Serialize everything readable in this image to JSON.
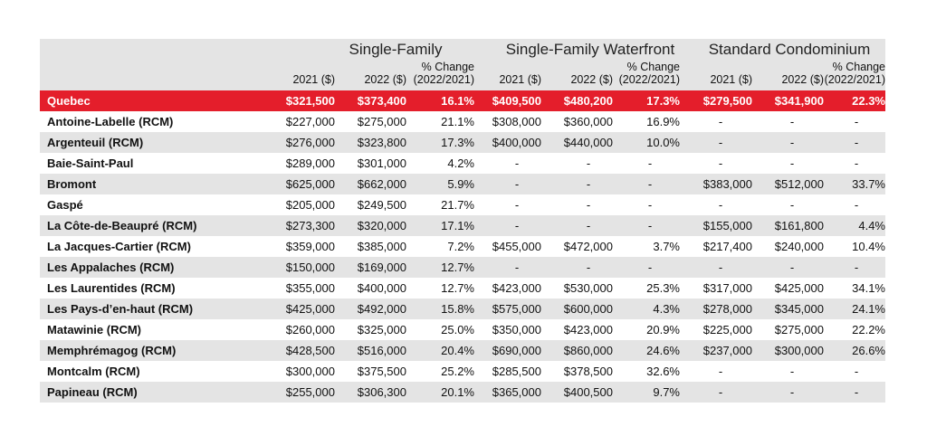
{
  "groups": [
    "Single-Family",
    "Single-Family Waterfront",
    "Standard Condominium"
  ],
  "subheaders": {
    "y2021": "2021 ($)",
    "y2022": "2022 ($)",
    "change_l1": "% Change",
    "change_l2": "(2022/2021)"
  },
  "rows": [
    {
      "name": "Quebec",
      "cells": [
        "$321,500",
        "$373,400",
        "16.1%",
        "$409,500",
        "$480,200",
        "17.3%",
        "$279,500",
        "$341,900",
        "22.3%"
      ]
    },
    {
      "name": "Antoine-Labelle (RCM)",
      "cells": [
        "$227,000",
        "$275,000",
        "21.1%",
        "$308,000",
        "$360,000",
        "16.9%",
        "-",
        "-",
        "-"
      ]
    },
    {
      "name": "Argenteuil (RCM)",
      "cells": [
        "$276,000",
        "$323,800",
        "17.3%",
        "$400,000",
        "$440,000",
        "10.0%",
        "-",
        "-",
        "-"
      ]
    },
    {
      "name": "Baie-Saint-Paul",
      "cells": [
        "$289,000",
        "$301,000",
        "4.2%",
        "-",
        "-",
        "-",
        "-",
        "-",
        "-"
      ]
    },
    {
      "name": "Bromont",
      "cells": [
        "$625,000",
        "$662,000",
        "5.9%",
        "-",
        "-",
        "-",
        "$383,000",
        "$512,000",
        "33.7%"
      ]
    },
    {
      "name": "Gaspé",
      "cells": [
        "$205,000",
        "$249,500",
        "21.7%",
        "-",
        "-",
        "-",
        "-",
        "-",
        "-"
      ]
    },
    {
      "name": "La Côte-de-Beaupré (RCM)",
      "cells": [
        "$273,300",
        "$320,000",
        "17.1%",
        "-",
        "-",
        "-",
        "$155,000",
        "$161,800",
        "4.4%"
      ]
    },
    {
      "name": "La Jacques-Cartier (RCM)",
      "cells": [
        "$359,000",
        "$385,000",
        "7.2%",
        "$455,000",
        "$472,000",
        "3.7%",
        "$217,400",
        "$240,000",
        "10.4%"
      ]
    },
    {
      "name": "Les Appalaches (RCM)",
      "cells": [
        "$150,000",
        "$169,000",
        "12.7%",
        "-",
        "-",
        "-",
        "-",
        "-",
        "-"
      ]
    },
    {
      "name": "Les Laurentides (RCM)",
      "cells": [
        "$355,000",
        "$400,000",
        "12.7%",
        "$423,000",
        "$530,000",
        "25.3%",
        "$317,000",
        "$425,000",
        "34.1%"
      ]
    },
    {
      "name": "Les Pays-d’en-haut (RCM)",
      "cells": [
        "$425,000",
        "$492,000",
        "15.8%",
        "$575,000",
        "$600,000",
        "4.3%",
        "$278,000",
        "$345,000",
        "24.1%"
      ]
    },
    {
      "name": "Matawinie (RCM)",
      "cells": [
        "$260,000",
        "$325,000",
        "25.0%",
        "$350,000",
        "$423,000",
        "20.9%",
        "$225,000",
        "$275,000",
        "22.2%"
      ]
    },
    {
      "name": "Memphrémagog (RCM)",
      "cells": [
        "$428,500",
        "$516,000",
        "20.4%",
        "$690,000",
        "$860,000",
        "24.6%",
        "$237,000",
        "$300,000",
        "26.6%"
      ]
    },
    {
      "name": "Montcalm (RCM)",
      "cells": [
        "$300,000",
        "$375,500",
        "25.2%",
        "$285,500",
        "$378,500",
        "32.6%",
        "-",
        "-",
        "-"
      ]
    },
    {
      "name": "Papineau (RCM)",
      "cells": [
        "$255,000",
        "$306,300",
        "20.1%",
        "$365,000",
        "$400,500",
        "9.7%",
        "-",
        "-",
        "-"
      ]
    }
  ],
  "colors": {
    "highlight": "#e41e2b",
    "band": "#e4e4e4"
  }
}
